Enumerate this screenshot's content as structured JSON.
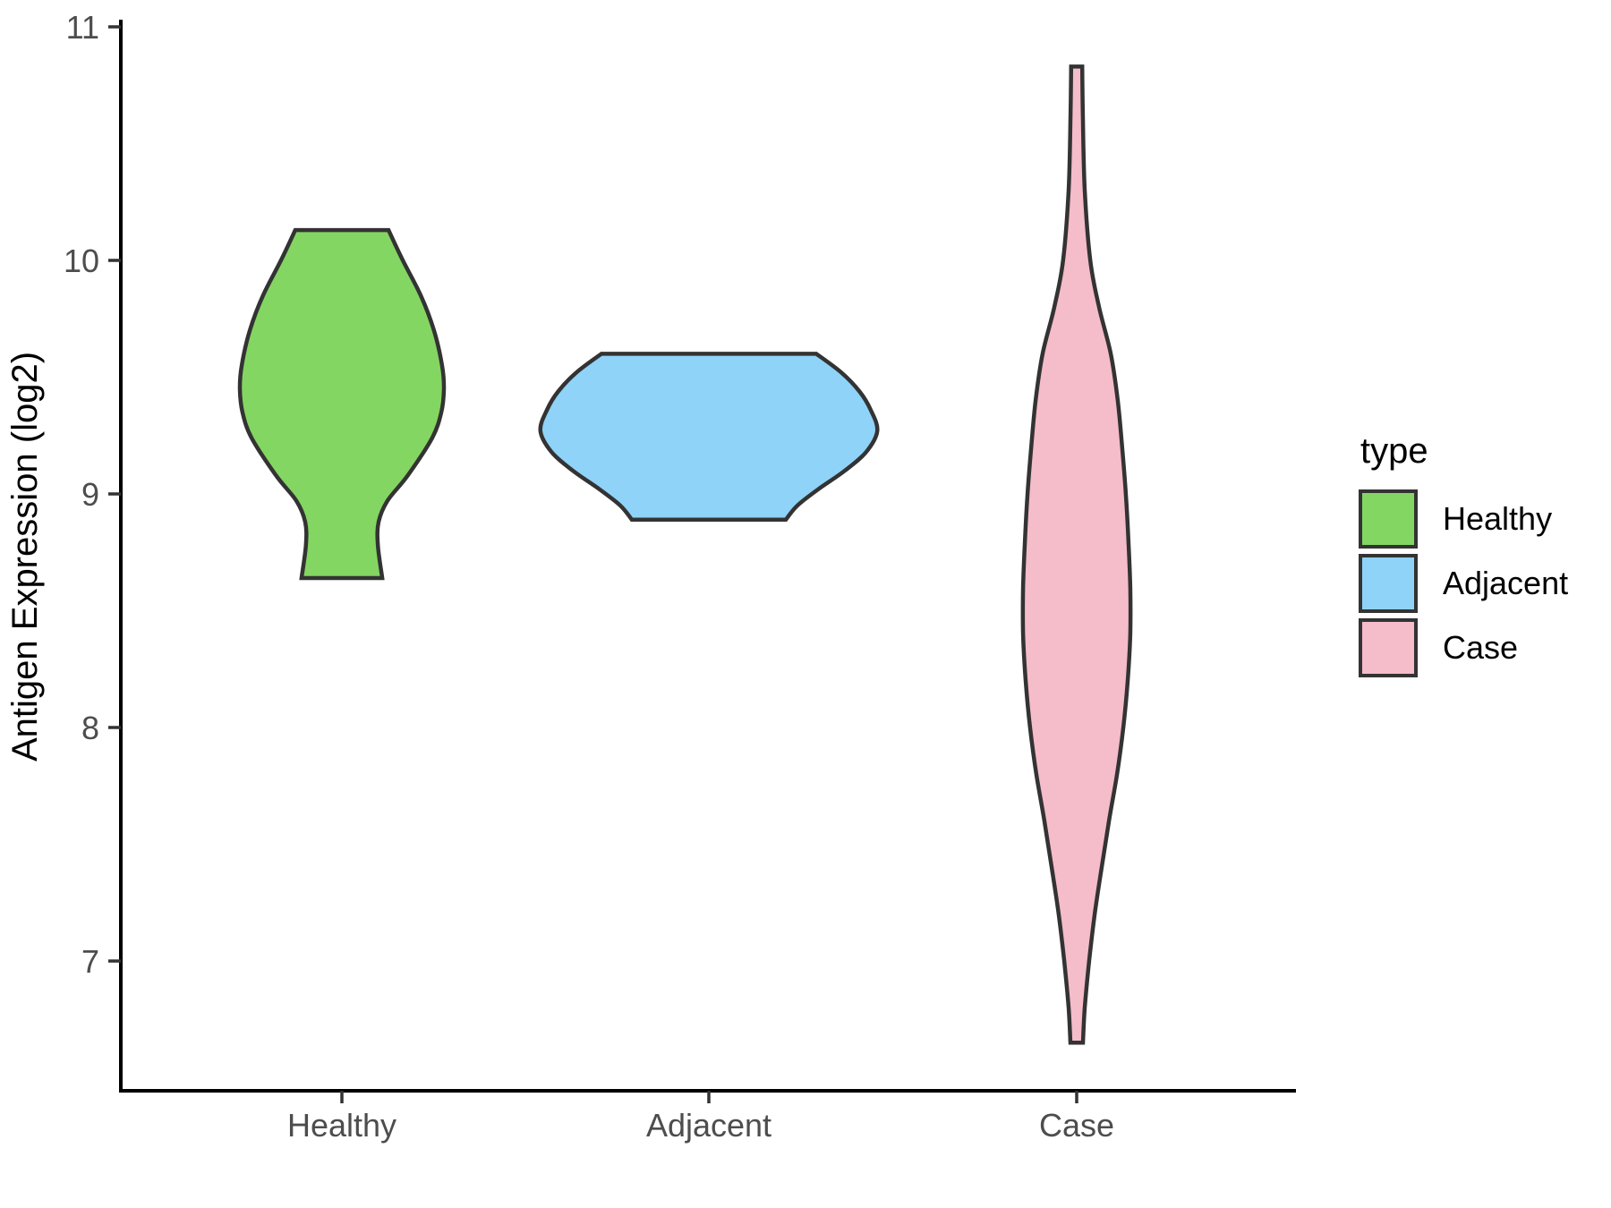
{
  "chart_data": {
    "type": "violin",
    "title": "",
    "xlabel": "",
    "ylabel": "Antigen Expression (log2)",
    "x_categories": [
      "Healthy",
      "Adjacent",
      "Case"
    ],
    "y_ticks": [
      11,
      10,
      9,
      8,
      7
    ],
    "y_range_shown": [
      6.44,
      11.02
    ],
    "grid": "off",
    "axis_style": "classic-left-bottom-only",
    "colors": {
      "axis_line": "#000000",
      "tick_mark": "#333333",
      "axis_text": "#4d4d4d",
      "axis_title": "#000000",
      "violin_outline": "#333333"
    },
    "legend": {
      "title": "type",
      "position": "right",
      "entries": [
        {
          "label": "Healthy",
          "color": "#84D662"
        },
        {
          "label": "Adjacent",
          "color": "#8FD3F8"
        },
        {
          "label": "Case",
          "color": "#F5BCCA"
        }
      ]
    },
    "series": [
      {
        "name": "Healthy",
        "fill": "#84D662",
        "outline": "#333333",
        "y_min": 8.64,
        "y_max": 10.13,
        "density_profile": [
          [
            10.13,
            0.127
          ],
          [
            10.0,
            0.166
          ],
          [
            9.85,
            0.215
          ],
          [
            9.7,
            0.251
          ],
          [
            9.55,
            0.273
          ],
          [
            9.45,
            0.278
          ],
          [
            9.35,
            0.271
          ],
          [
            9.24,
            0.246
          ],
          [
            9.08,
            0.18
          ],
          [
            8.97,
            0.124
          ],
          [
            8.88,
            0.1
          ],
          [
            8.78,
            0.098
          ],
          [
            8.64,
            0.11
          ]
        ]
      },
      {
        "name": "Adjacent",
        "fill": "#8FD3F8",
        "outline": "#333333",
        "y_min": 8.89,
        "y_max": 9.6,
        "density_profile": [
          [
            9.6,
            0.293
          ],
          [
            9.52,
            0.361
          ],
          [
            9.44,
            0.41
          ],
          [
            9.36,
            0.441
          ],
          [
            9.27,
            0.459
          ],
          [
            9.18,
            0.429
          ],
          [
            9.1,
            0.371
          ],
          [
            9.02,
            0.298
          ],
          [
            8.95,
            0.241
          ],
          [
            8.89,
            0.21
          ]
        ]
      },
      {
        "name": "Case",
        "fill": "#F5BCCA",
        "outline": "#333333",
        "y_min": 6.65,
        "y_max": 10.83,
        "density_profile": [
          [
            10.83,
            0.015
          ],
          [
            10.6,
            0.017
          ],
          [
            10.3,
            0.022
          ],
          [
            10.0,
            0.037
          ],
          [
            9.8,
            0.061
          ],
          [
            9.6,
            0.093
          ],
          [
            9.4,
            0.112
          ],
          [
            9.2,
            0.124
          ],
          [
            9.0,
            0.134
          ],
          [
            8.8,
            0.141
          ],
          [
            8.6,
            0.146
          ],
          [
            8.4,
            0.146
          ],
          [
            8.2,
            0.139
          ],
          [
            8.0,
            0.127
          ],
          [
            7.8,
            0.11
          ],
          [
            7.6,
            0.088
          ],
          [
            7.4,
            0.068
          ],
          [
            7.2,
            0.049
          ],
          [
            7.0,
            0.034
          ],
          [
            6.8,
            0.022
          ],
          [
            6.65,
            0.017
          ]
        ]
      }
    ]
  }
}
